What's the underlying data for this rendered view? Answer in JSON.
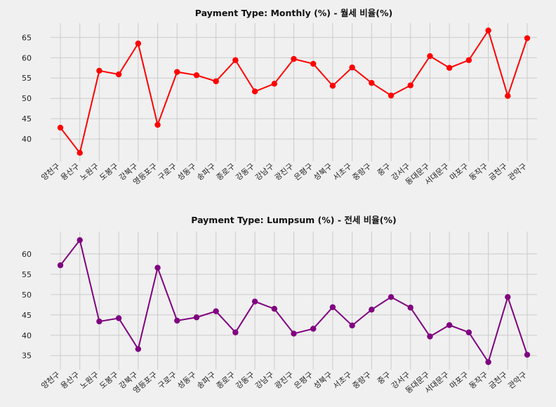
{
  "chart_data": [
    {
      "type": "line",
      "title": "Payment Type: Monthly (%) - 월세 비율(%)",
      "xlabel": "",
      "ylabel": "",
      "categories": [
        "양천구",
        "용산구",
        "노원구",
        "도봉구",
        "강북구",
        "영등포구",
        "구로구",
        "성동구",
        "송파구",
        "종로구",
        "강동구",
        "강남구",
        "광진구",
        "은평구",
        "성북구",
        "서초구",
        "중랑구",
        "중구",
        "강서구",
        "동대문구",
        "서대문구",
        "마포구",
        "동작구",
        "금천구",
        "관악구"
      ],
      "yticks": [
        40,
        45,
        50,
        55,
        60,
        65
      ],
      "ylim": [
        34.5,
        68.5
      ],
      "grid": true,
      "color": "#ff0000",
      "series": [
        {
          "values": [
            42.8,
            36.6,
            56.8,
            55.9,
            63.5,
            43.5,
            56.5,
            55.7,
            54.2,
            59.4,
            51.7,
            53.6,
            59.7,
            58.5,
            53.1,
            57.6,
            53.8,
            50.7,
            53.2,
            60.4,
            57.5,
            59.4,
            66.7,
            50.6,
            64.8
          ]
        }
      ]
    },
    {
      "type": "line",
      "title": "Payment Type: Lumpsum (%) - 전세 비율(%)",
      "xlabel": "",
      "ylabel": "",
      "categories": [
        "양천구",
        "용산구",
        "노원구",
        "도봉구",
        "강북구",
        "영등포구",
        "구로구",
        "성동구",
        "송파구",
        "종로구",
        "강동구",
        "강남구",
        "광진구",
        "은평구",
        "성북구",
        "서초구",
        "중랑구",
        "중구",
        "강서구",
        "동대문구",
        "서대문구",
        "마포구",
        "동작구",
        "금천구",
        "관악구"
      ],
      "yticks": [
        35,
        40,
        45,
        50,
        55,
        60
      ],
      "ylim": [
        31.5,
        65.5
      ],
      "grid": true,
      "color": "#800080",
      "series": [
        {
          "values": [
            57.2,
            63.4,
            43.4,
            44.2,
            36.6,
            56.6,
            43.6,
            44.4,
            45.9,
            40.7,
            48.3,
            46.5,
            40.4,
            41.6,
            46.9,
            42.4,
            46.3,
            49.4,
            46.8,
            39.7,
            42.5,
            40.7,
            33.4,
            49.4,
            35.2
          ]
        }
      ]
    }
  ]
}
